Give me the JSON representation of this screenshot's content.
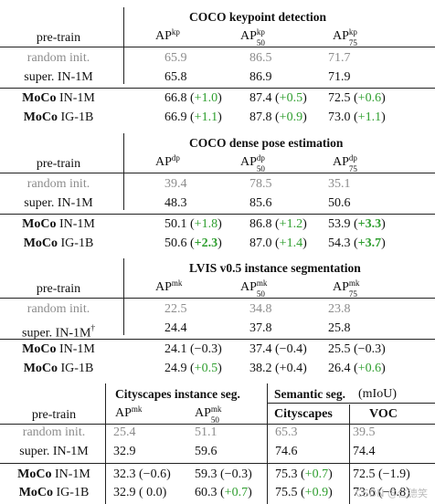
{
  "sections": [
    {
      "title": "COCO keypoint detection",
      "pretrain_label": "pre-train",
      "metrics": [
        {
          "base": "AP",
          "sup": "kp",
          "sub": ""
        },
        {
          "base": "AP",
          "sup": "kp",
          "sub": "50"
        },
        {
          "base": "AP",
          "sup": "kp",
          "sub": "75"
        }
      ],
      "rows": [
        {
          "method": "random init.",
          "style": "gray",
          "cells": [
            {
              "v": "65.9",
              "d": ""
            },
            {
              "v": "86.5",
              "d": ""
            },
            {
              "v": "71.7",
              "d": ""
            }
          ]
        },
        {
          "method": "super.  IN-1M",
          "style": "normal",
          "cells": [
            {
              "v": "65.8",
              "d": ""
            },
            {
              "v": "86.9",
              "d": ""
            },
            {
              "v": "71.9",
              "d": ""
            }
          ]
        },
        {
          "method_bold": "MoCo",
          "method_rest": "IN-1M",
          "style": "moco",
          "cells": [
            {
              "v": "66.8",
              "d": "+1.0",
              "g": true
            },
            {
              "v": "87.4",
              "d": "+0.5",
              "g": true
            },
            {
              "v": "72.5",
              "d": "+0.6",
              "g": true
            }
          ]
        },
        {
          "method_bold": "MoCo",
          "method_rest": "IG-1B",
          "style": "moco",
          "cells": [
            {
              "v": "66.9",
              "d": "+1.1",
              "g": true
            },
            {
              "v": "87.8",
              "d": "+0.9",
              "g": true
            },
            {
              "v": "73.0",
              "d": "+1.1",
              "g": true
            }
          ]
        }
      ]
    },
    {
      "title": "COCO dense pose estimation",
      "pretrain_label": "pre-train",
      "metrics": [
        {
          "base": "AP",
          "sup": "dp",
          "sub": ""
        },
        {
          "base": "AP",
          "sup": "dp",
          "sub": "50"
        },
        {
          "base": "AP",
          "sup": "dp",
          "sub": "75"
        }
      ],
      "rows": [
        {
          "method": "random init.",
          "style": "gray",
          "cells": [
            {
              "v": "39.4",
              "d": ""
            },
            {
              "v": "78.5",
              "d": ""
            },
            {
              "v": "35.1",
              "d": ""
            }
          ]
        },
        {
          "method": "super.  IN-1M",
          "style": "normal",
          "cells": [
            {
              "v": "48.3",
              "d": ""
            },
            {
              "v": "85.6",
              "d": ""
            },
            {
              "v": "50.6",
              "d": ""
            }
          ]
        },
        {
          "method_bold": "MoCo",
          "method_rest": "IN-1M",
          "style": "moco",
          "cells": [
            {
              "v": "50.1",
              "d": "+1.8",
              "g": true
            },
            {
              "v": "86.8",
              "d": "+1.2",
              "g": true
            },
            {
              "v": "53.9",
              "d": "+3.3",
              "g": true,
              "bd": true
            }
          ]
        },
        {
          "method_bold": "MoCo",
          "method_rest": "IG-1B",
          "style": "moco",
          "cells": [
            {
              "v": "50.6",
              "d": "+2.3",
              "g": true,
              "bd": true
            },
            {
              "v": "87.0",
              "d": "+1.4",
              "g": true
            },
            {
              "v": "54.3",
              "d": "+3.7",
              "g": true,
              "bd": true
            }
          ]
        }
      ]
    },
    {
      "title": "LVIS v0.5 instance segmentation",
      "pretrain_label": "pre-train",
      "metrics": [
        {
          "base": "AP",
          "sup": "mk",
          "sub": ""
        },
        {
          "base": "AP",
          "sup": "mk",
          "sub": "50"
        },
        {
          "base": "AP",
          "sup": "mk",
          "sub": "75"
        }
      ],
      "rows": [
        {
          "method": "random init.",
          "style": "gray",
          "cells": [
            {
              "v": "22.5",
              "d": ""
            },
            {
              "v": "34.8",
              "d": ""
            },
            {
              "v": "23.8",
              "d": ""
            }
          ]
        },
        {
          "method": "super.  IN-1M",
          "dagger": "†",
          "style": "normal",
          "cells": [
            {
              "v": "24.4",
              "d": ""
            },
            {
              "v": "37.8",
              "d": ""
            },
            {
              "v": "25.8",
              "d": ""
            }
          ]
        },
        {
          "method_bold": "MoCo",
          "method_rest": "IN-1M",
          "style": "moco",
          "cells": [
            {
              "v": "24.1",
              "d": "−0.3"
            },
            {
              "v": "37.4",
              "d": "−0.4"
            },
            {
              "v": "25.5",
              "d": "−0.3"
            }
          ]
        },
        {
          "method_bold": "MoCo",
          "method_rest": "IG-1B",
          "style": "moco",
          "cells": [
            {
              "v": "24.9",
              "d": "+0.5",
              "g": true
            },
            {
              "v": "38.2",
              "d": "+0.4"
            },
            {
              "v": "26.4",
              "d": "+0.6",
              "g": true
            }
          ]
        }
      ]
    }
  ],
  "last": {
    "title_city": "Cityscapes instance seg.",
    "title_sem": "Semantic seg.",
    "title_sem_unit": "(mIoU)",
    "pretrain_label": "pre-train",
    "metric1": {
      "base": "AP",
      "sup": "mk",
      "sub": ""
    },
    "metric2": {
      "base": "AP",
      "sup": "mk",
      "sub": "50"
    },
    "col_city": "Cityscapes",
    "col_voc": "VOC",
    "rows": [
      {
        "method": "random init.",
        "style": "gray",
        "cells": [
          {
            "v": "25.4",
            "d": ""
          },
          {
            "v": "51.1",
            "d": ""
          },
          {
            "v": "65.3",
            "d": ""
          },
          {
            "v": "39.5",
            "d": ""
          }
        ]
      },
      {
        "method": "super.  IN-1M",
        "style": "normal",
        "cells": [
          {
            "v": "32.9",
            "d": ""
          },
          {
            "v": "59.6",
            "d": ""
          },
          {
            "v": "74.6",
            "d": ""
          },
          {
            "v": "74.4",
            "d": ""
          }
        ]
      },
      {
        "method_bold": "MoCo",
        "method_rest": "IN-1M",
        "style": "moco",
        "cells": [
          {
            "v": "32.3",
            "d": "−0.6"
          },
          {
            "v": "59.3",
            "d": "−0.3"
          },
          {
            "v": "75.3",
            "d": "+0.7",
            "g": true
          },
          {
            "v": "72.5",
            "d": "−1.9"
          }
        ]
      },
      {
        "method_bold": "MoCo",
        "method_rest": "IG-1B",
        "style": "moco",
        "cells": [
          {
            "v": "32.9",
            "d": "  0.0"
          },
          {
            "v": "60.3",
            "d": "+0.7",
            "g": true
          },
          {
            "v": "75.5",
            "d": "+0.9",
            "g": true
          },
          {
            "v": "73.6",
            "d": "−0.8"
          }
        ]
      }
    ]
  },
  "watermark": "CSDN @仁德笑"
}
